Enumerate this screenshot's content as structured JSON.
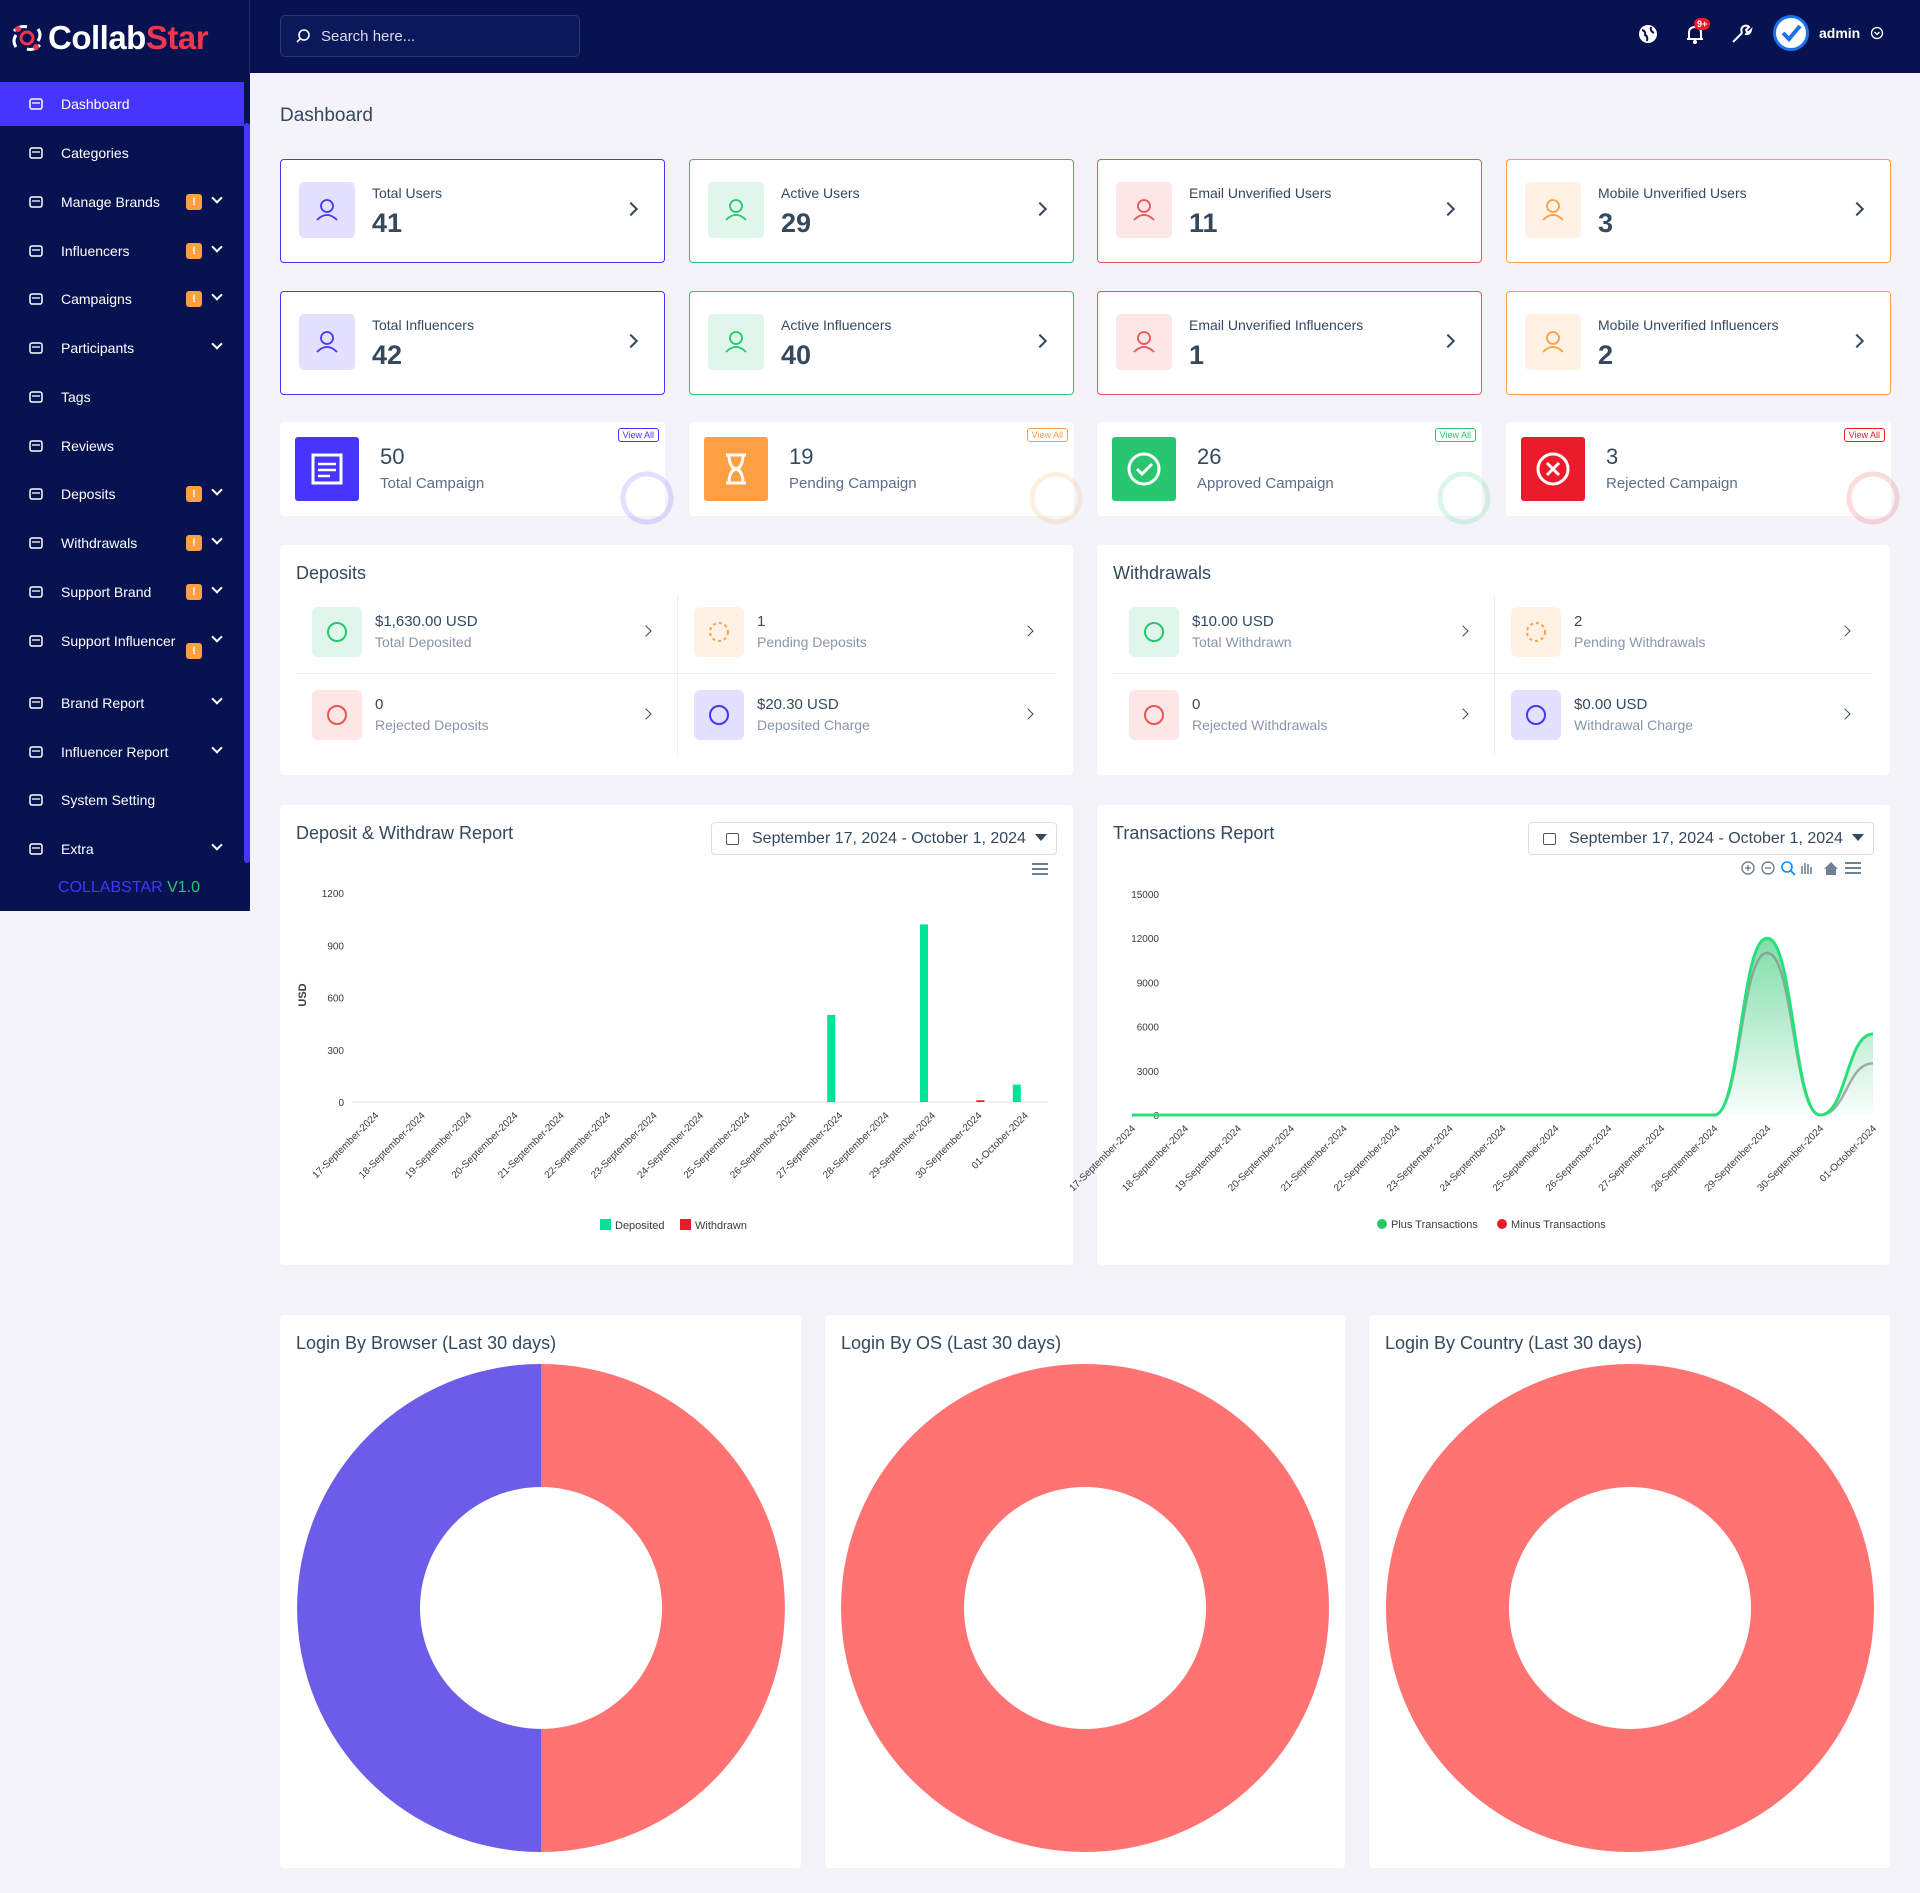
{
  "brand": {
    "name_part1": "Collab",
    "name_part2": "Star"
  },
  "topbar": {
    "search_placeholder": "Search here...",
    "notification_badge": "9+",
    "user": "admin"
  },
  "sidebar": {
    "items": [
      {
        "label": "Dashboard",
        "icon": "home-icon",
        "warn": false,
        "chevron": false,
        "active": true
      },
      {
        "label": "Categories",
        "icon": "layers-icon",
        "warn": false,
        "chevron": false
      },
      {
        "label": "Manage Brands",
        "icon": "users-cog-icon",
        "warn": true,
        "chevron": true
      },
      {
        "label": "Influencers",
        "icon": "users-icon",
        "warn": true,
        "chevron": true
      },
      {
        "label": "Campaigns",
        "icon": "newspaper-icon",
        "warn": true,
        "chevron": true
      },
      {
        "label": "Participants",
        "icon": "clipboard-icon",
        "warn": false,
        "chevron": true
      },
      {
        "label": "Tags",
        "icon": "tag-icon",
        "warn": false,
        "chevron": false
      },
      {
        "label": "Reviews",
        "icon": "star-icon",
        "warn": false,
        "chevron": false
      },
      {
        "label": "Deposits",
        "icon": "file-invoice-icon",
        "warn": true,
        "chevron": true
      },
      {
        "label": "Withdrawals",
        "icon": "bank-icon",
        "warn": true,
        "chevron": true
      },
      {
        "label": "Support Brand",
        "icon": "ticket-icon",
        "warn": true,
        "chevron": true
      },
      {
        "label": "Support Influencer",
        "icon": "clipboard-list-icon",
        "warn": true,
        "chevron": true
      },
      {
        "label": "Brand Report",
        "icon": "list-icon",
        "warn": false,
        "chevron": true
      },
      {
        "label": "Influencer Report",
        "icon": "list-icon",
        "warn": false,
        "chevron": true
      },
      {
        "label": "System Setting",
        "icon": "gear-icon",
        "warn": false,
        "chevron": false
      },
      {
        "label": "Extra",
        "icon": "server-icon",
        "warn": false,
        "chevron": true
      }
    ],
    "warn_symbol": "!",
    "version_name": "COLLABSTAR",
    "version_num": "V1.0"
  },
  "page_title": "Dashboard",
  "stats": [
    {
      "label": "Total Users",
      "value": "41",
      "color": "#4634ff"
    },
    {
      "label": "Active Users",
      "value": "29",
      "color": "#28c76f"
    },
    {
      "label": "Email Unverified Users",
      "value": "11",
      "color": "#ea5455"
    },
    {
      "label": "Mobile Unverified Users",
      "value": "3",
      "color": "#ff9f43"
    },
    {
      "label": "Total Influencers",
      "value": "42",
      "color": "#4634ff"
    },
    {
      "label": "Active Influencers",
      "value": "40",
      "color": "#28c76f"
    },
    {
      "label": "Email Unverified Influencers",
      "value": "1",
      "color": "#ea5455"
    },
    {
      "label": "Mobile Unverified Influencers",
      "value": "2",
      "color": "#ff9f43"
    }
  ],
  "campaigns": [
    {
      "value": "50",
      "label": "Total Campaign",
      "view_all": "View All",
      "color": "#4634ff"
    },
    {
      "value": "19",
      "label": "Pending Campaign",
      "view_all": "View All",
      "color": "#ff9f43"
    },
    {
      "value": "26",
      "label": "Approved Campaign",
      "view_all": "View All",
      "color": "#28c76f"
    },
    {
      "value": "3",
      "label": "Rejected Campaign",
      "view_all": "View All",
      "color": "#ea1b2b"
    }
  ],
  "deposits": {
    "title": "Deposits",
    "items": [
      {
        "value": "$1,630.00 USD",
        "label": "Total Deposited"
      },
      {
        "value": "1",
        "label": "Pending Deposits"
      },
      {
        "value": "0",
        "label": "Rejected Deposits"
      },
      {
        "value": "$20.30 USD",
        "label": "Deposited Charge"
      }
    ]
  },
  "withdrawals": {
    "title": "Withdrawals",
    "items": [
      {
        "value": "$10.00 USD",
        "label": "Total Withdrawn"
      },
      {
        "value": "2",
        "label": "Pending Withdrawals"
      },
      {
        "value": "0",
        "label": "Rejected Withdrawals"
      },
      {
        "value": "$0.00 USD",
        "label": "Withdrawal Charge"
      }
    ]
  },
  "report1": {
    "title": "Deposit & Withdraw Report",
    "date_range": "September 17, 2024 - October 1, 2024"
  },
  "report2": {
    "title": "Transactions Report",
    "date_range": "September 17, 2024 - October 1, 2024"
  },
  "login": {
    "browser_title": "Login By Browser (Last 30 days)",
    "os_title": "Login By OS (Last 30 days)",
    "country_title": "Login By Country (Last 30 days)"
  },
  "chart_data": [
    {
      "type": "bar",
      "categories": [
        "17-September-2024",
        "18-September-2024",
        "19-September-2024",
        "20-September-2024",
        "21-September-2024",
        "22-September-2024",
        "23-September-2024",
        "24-September-2024",
        "25-September-2024",
        "26-September-2024",
        "27-September-2024",
        "28-September-2024",
        "29-September-2024",
        "30-September-2024",
        "01-October-2024"
      ],
      "series": [
        {
          "name": "Deposited",
          "color": "#00e396",
          "values": [
            0,
            0,
            0,
            0,
            0,
            0,
            0,
            0,
            0,
            0,
            500,
            0,
            1020,
            0,
            100
          ]
        },
        {
          "name": "Withdrawn",
          "color": "#ea1b2b",
          "values": [
            0,
            0,
            0,
            0,
            0,
            0,
            0,
            0,
            0,
            0,
            0,
            0,
            0,
            10,
            0
          ]
        }
      ],
      "ylabel": "USD",
      "ylim": [
        0,
        1200
      ],
      "yticks": [
        0,
        300,
        600,
        900,
        1200
      ]
    },
    {
      "type": "area",
      "categories": [
        "17-September-2024",
        "18-September-2024",
        "19-September-2024",
        "20-September-2024",
        "21-September-2024",
        "22-September-2024",
        "23-September-2024",
        "24-September-2024",
        "25-September-2024",
        "26-September-2024",
        "27-September-2024",
        "28-September-2024",
        "29-September-2024",
        "30-September-2024",
        "01-October-2024"
      ],
      "series": [
        {
          "name": "Plus Transactions",
          "color": "#28c76f",
          "values": [
            0,
            0,
            0,
            0,
            0,
            0,
            0,
            0,
            0,
            0,
            0,
            0,
            12000,
            0,
            5500
          ]
        },
        {
          "name": "Minus Transactions",
          "color": "#ea1b2b",
          "values": [
            0,
            0,
            0,
            0,
            0,
            0,
            0,
            0,
            0,
            0,
            0,
            0,
            11000,
            0,
            3500
          ]
        }
      ],
      "ylim": [
        0,
        15000
      ],
      "yticks": [
        0,
        3000,
        6000,
        9000,
        12000,
        15000
      ]
    },
    {
      "type": "pie",
      "values": [
        50,
        50
      ],
      "colors": [
        "#ff7473",
        "#6c5ce7"
      ]
    },
    {
      "type": "pie",
      "values": [
        100
      ],
      "colors": [
        "#ff7473"
      ]
    },
    {
      "type": "pie",
      "values": [
        100
      ],
      "colors": [
        "#ff7473"
      ]
    }
  ]
}
